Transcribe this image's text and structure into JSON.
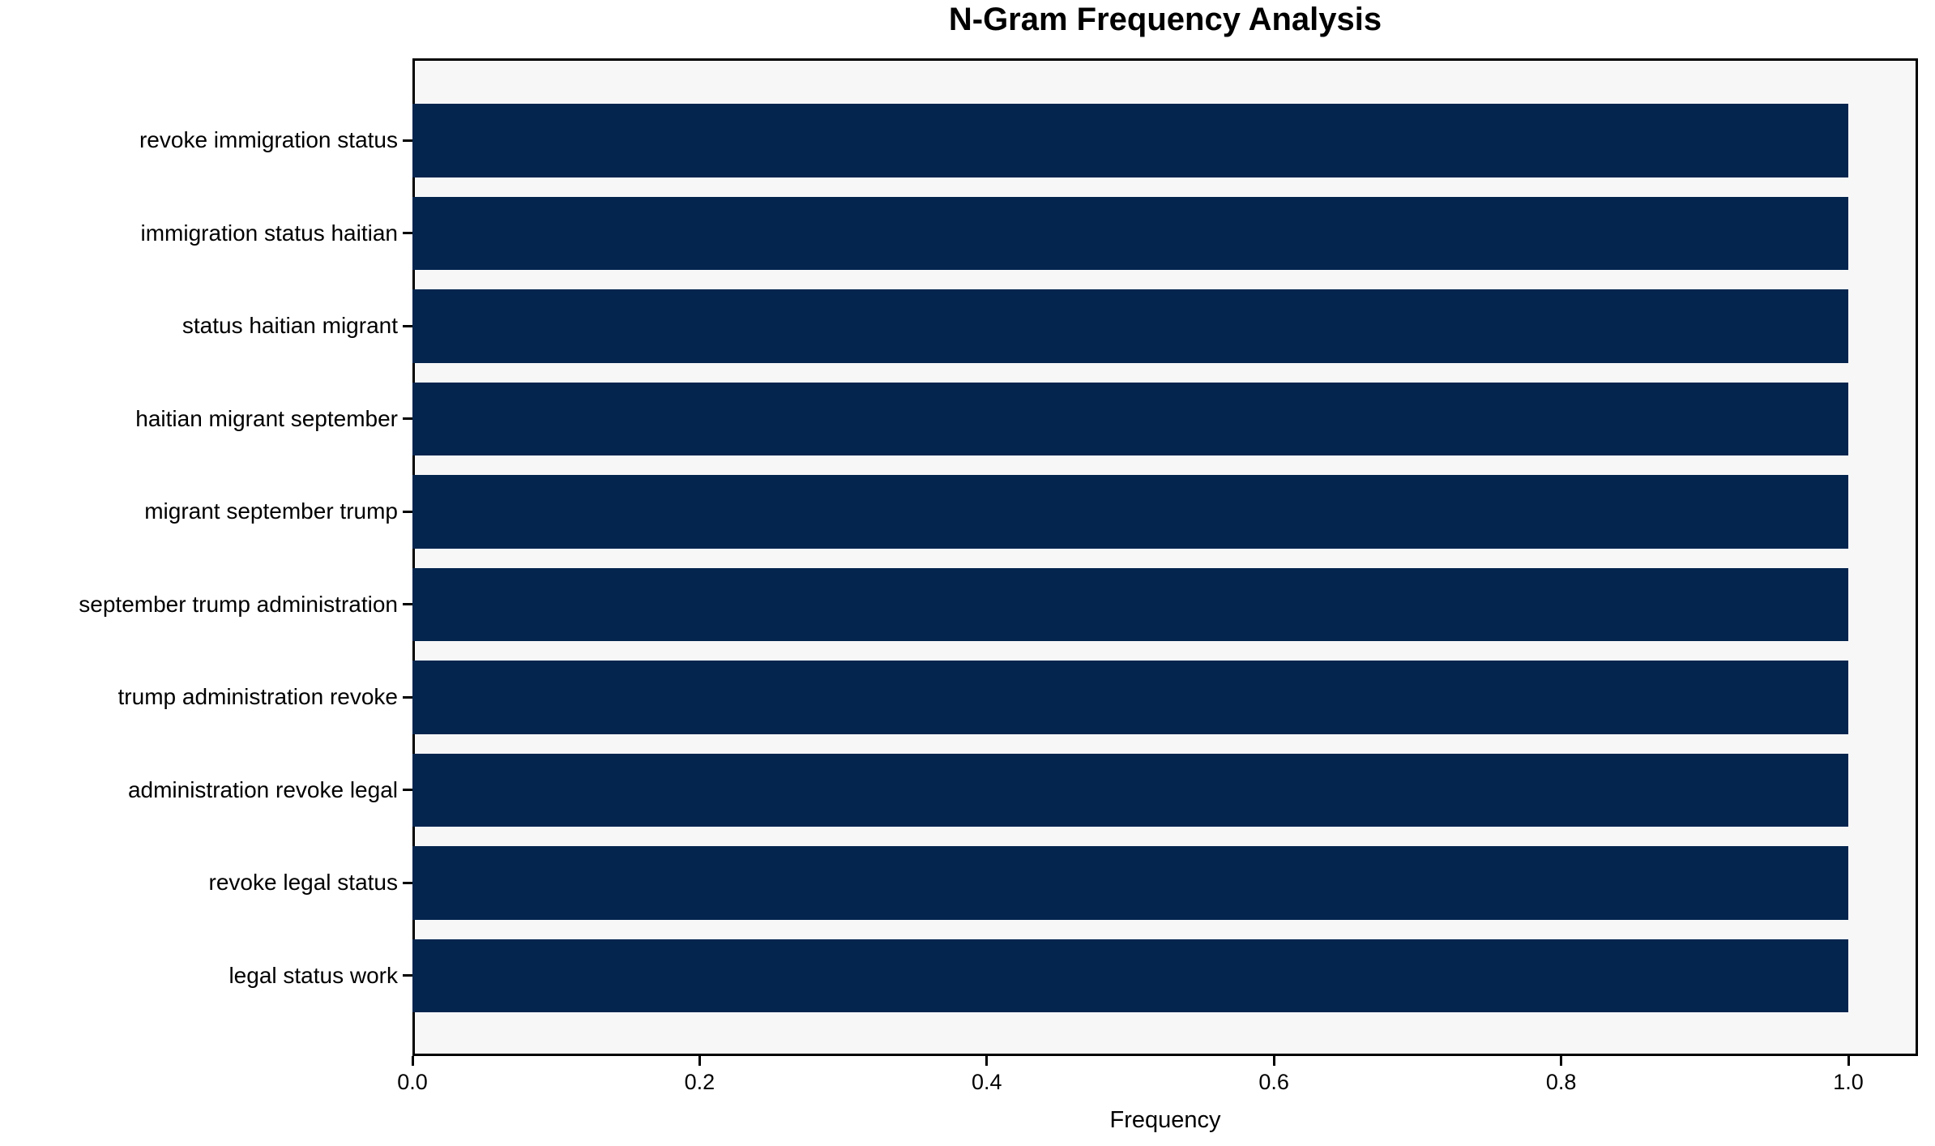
{
  "chart_data": {
    "type": "bar",
    "orientation": "horizontal",
    "title": "N-Gram Frequency Analysis",
    "xlabel": "Frequency",
    "ylabel": "",
    "categories": [
      "revoke immigration status",
      "immigration status haitian",
      "status haitian migrant",
      "haitian migrant september",
      "migrant september trump",
      "september trump administration",
      "trump administration revoke",
      "administration revoke legal",
      "revoke legal status",
      "legal status work"
    ],
    "values": [
      1.0,
      1.0,
      1.0,
      1.0,
      1.0,
      1.0,
      1.0,
      1.0,
      1.0,
      1.0
    ],
    "x_tick_values": [
      0.0,
      0.2,
      0.4,
      0.6,
      0.8,
      1.0
    ],
    "x_tick_labels": [
      "0.0",
      "0.2",
      "0.4",
      "0.6",
      "0.8",
      "1.0"
    ],
    "xlim": [
      0,
      1.05
    ],
    "grid": false,
    "legend": "none",
    "bar_color": "#03254e",
    "plot_background": "#f7f7f8",
    "axis_color": "#000000"
  }
}
